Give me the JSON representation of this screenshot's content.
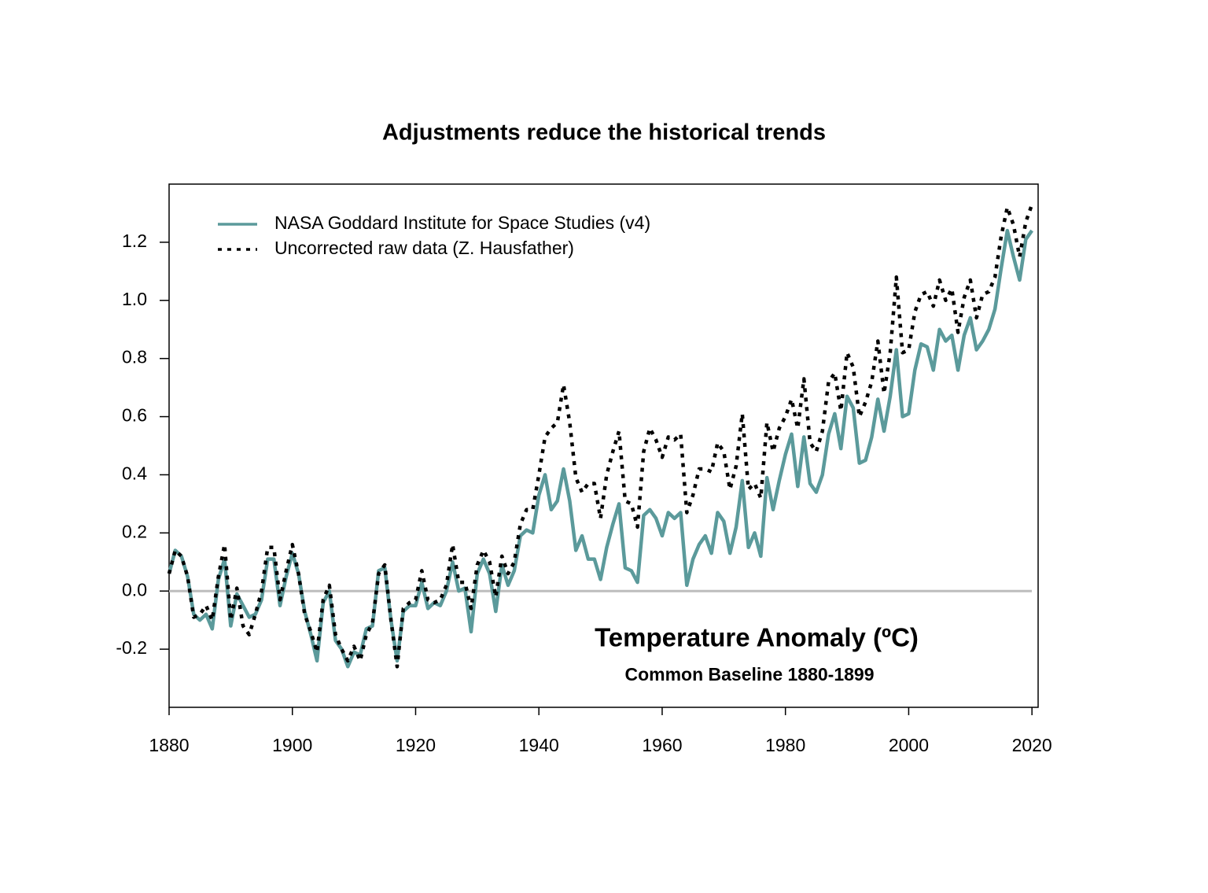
{
  "chart_data": {
    "type": "line",
    "title": "Adjustments reduce the historical trends",
    "annotations": [
      "Temperature Anomaly (ºC)",
      "Common Baseline 1880-1899"
    ],
    "legend": "top-left",
    "reference_line": 0,
    "xlim": [
      1880,
      2021
    ],
    "ylim": [
      -0.4,
      1.4
    ],
    "xticks": [
      1880,
      1900,
      1920,
      1940,
      1960,
      1980,
      2000,
      2020
    ],
    "yticks": [
      -0.2,
      {
        "value": 0,
        "label": "0.0"
      },
      0.2,
      0.4,
      0.6,
      0.8,
      {
        "value": 1,
        "label": "1.0"
      },
      1.2
    ],
    "x": [
      1880,
      1881,
      1882,
      1883,
      1884,
      1885,
      1886,
      1887,
      1888,
      1889,
      1890,
      1891,
      1892,
      1893,
      1894,
      1895,
      1896,
      1897,
      1898,
      1899,
      1900,
      1901,
      1902,
      1903,
      1904,
      1905,
      1906,
      1907,
      1908,
      1909,
      1910,
      1911,
      1912,
      1913,
      1914,
      1915,
      1916,
      1917,
      1918,
      1919,
      1920,
      1921,
      1922,
      1923,
      1924,
      1925,
      1926,
      1927,
      1928,
      1929,
      1930,
      1931,
      1932,
      1933,
      1934,
      1935,
      1936,
      1937,
      1938,
      1939,
      1940,
      1941,
      1942,
      1943,
      1944,
      1945,
      1946,
      1947,
      1948,
      1949,
      1950,
      1951,
      1952,
      1953,
      1954,
      1955,
      1956,
      1957,
      1958,
      1959,
      1960,
      1961,
      1962,
      1963,
      1964,
      1965,
      1966,
      1967,
      1968,
      1969,
      1970,
      1971,
      1972,
      1973,
      1974,
      1975,
      1976,
      1977,
      1978,
      1979,
      1980,
      1981,
      1982,
      1983,
      1984,
      1985,
      1986,
      1987,
      1988,
      1989,
      1990,
      1991,
      1992,
      1993,
      1994,
      1995,
      1996,
      1997,
      1998,
      1999,
      2000,
      2001,
      2002,
      2003,
      2004,
      2005,
      2006,
      2007,
      2008,
      2009,
      2010,
      2011,
      2012,
      2013,
      2014,
      2015,
      2016,
      2017,
      2018,
      2019,
      2020
    ],
    "series": [
      {
        "name": "NASA Goddard Institute for Space Studies (v4)",
        "color": "#5b9a9b",
        "style": "solid",
        "values": [
          0.06,
          0.14,
          0.12,
          0.05,
          -0.08,
          -0.1,
          -0.08,
          -0.13,
          0.04,
          0.11,
          -0.12,
          -0.01,
          -0.05,
          -0.09,
          -0.08,
          -0.03,
          0.11,
          0.11,
          -0.05,
          0.05,
          0.13,
          0.06,
          -0.07,
          -0.15,
          -0.24,
          -0.04,
          0.0,
          -0.17,
          -0.2,
          -0.26,
          -0.21,
          -0.22,
          -0.13,
          -0.12,
          0.07,
          0.08,
          -0.1,
          -0.24,
          -0.07,
          -0.05,
          -0.05,
          0.03,
          -0.06,
          -0.04,
          -0.05,
          0.0,
          0.1,
          0.0,
          0.01,
          -0.14,
          0.06,
          0.11,
          0.06,
          -0.07,
          0.09,
          0.02,
          0.07,
          0.19,
          0.21,
          0.2,
          0.33,
          0.4,
          0.28,
          0.31,
          0.42,
          0.31,
          0.14,
          0.19,
          0.11,
          0.11,
          0.04,
          0.15,
          0.23,
          0.3,
          0.08,
          0.07,
          0.03,
          0.26,
          0.28,
          0.25,
          0.19,
          0.27,
          0.25,
          0.27,
          0.02,
          0.11,
          0.16,
          0.19,
          0.13,
          0.27,
          0.24,
          0.13,
          0.22,
          0.38,
          0.15,
          0.2,
          0.12,
          0.39,
          0.28,
          0.38,
          0.47,
          0.54,
          0.36,
          0.53,
          0.37,
          0.34,
          0.4,
          0.54,
          0.61,
          0.49,
          0.67,
          0.63,
          0.44,
          0.45,
          0.53,
          0.66,
          0.55,
          0.67,
          0.83,
          0.6,
          0.61,
          0.76,
          0.85,
          0.84,
          0.76,
          0.9,
          0.86,
          0.88,
          0.76,
          0.88,
          0.94,
          0.83,
          0.86,
          0.9,
          0.97,
          1.11,
          1.24,
          1.15,
          1.07,
          1.21,
          1.24
        ]
      },
      {
        "name": "Uncorrected raw data (Z. Hausfather)",
        "color": "#000000",
        "style": "dotted",
        "values": [
          0.06,
          0.14,
          0.12,
          0.05,
          -0.09,
          -0.08,
          -0.05,
          -0.1,
          0.05,
          0.16,
          -0.1,
          0.01,
          -0.12,
          -0.15,
          -0.08,
          0.0,
          0.15,
          0.15,
          -0.03,
          0.07,
          0.16,
          0.06,
          -0.08,
          -0.14,
          -0.21,
          -0.03,
          0.02,
          -0.15,
          -0.2,
          -0.24,
          -0.19,
          -0.24,
          -0.15,
          -0.11,
          0.06,
          0.09,
          -0.1,
          -0.26,
          -0.06,
          -0.04,
          -0.03,
          0.07,
          -0.03,
          -0.04,
          -0.03,
          0.02,
          0.16,
          0.03,
          0.03,
          -0.06,
          0.09,
          0.14,
          0.1,
          -0.02,
          0.12,
          0.06,
          0.1,
          0.23,
          0.28,
          0.28,
          0.4,
          0.53,
          0.56,
          0.58,
          0.71,
          0.58,
          0.39,
          0.34,
          0.37,
          0.37,
          0.25,
          0.4,
          0.48,
          0.55,
          0.31,
          0.3,
          0.22,
          0.48,
          0.56,
          0.52,
          0.46,
          0.53,
          0.52,
          0.54,
          0.27,
          0.33,
          0.42,
          0.42,
          0.41,
          0.51,
          0.48,
          0.35,
          0.43,
          0.61,
          0.35,
          0.37,
          0.32,
          0.58,
          0.48,
          0.56,
          0.6,
          0.66,
          0.56,
          0.73,
          0.51,
          0.48,
          0.55,
          0.72,
          0.75,
          0.62,
          0.82,
          0.77,
          0.6,
          0.65,
          0.72,
          0.86,
          0.68,
          0.82,
          1.08,
          0.82,
          0.83,
          0.96,
          1.02,
          1.03,
          0.98,
          1.07,
          1.0,
          1.04,
          0.89,
          1.01,
          1.07,
          0.94,
          1.02,
          1.03,
          1.08,
          1.22,
          1.32,
          1.26,
          1.15,
          1.27,
          1.33
        ]
      }
    ]
  }
}
